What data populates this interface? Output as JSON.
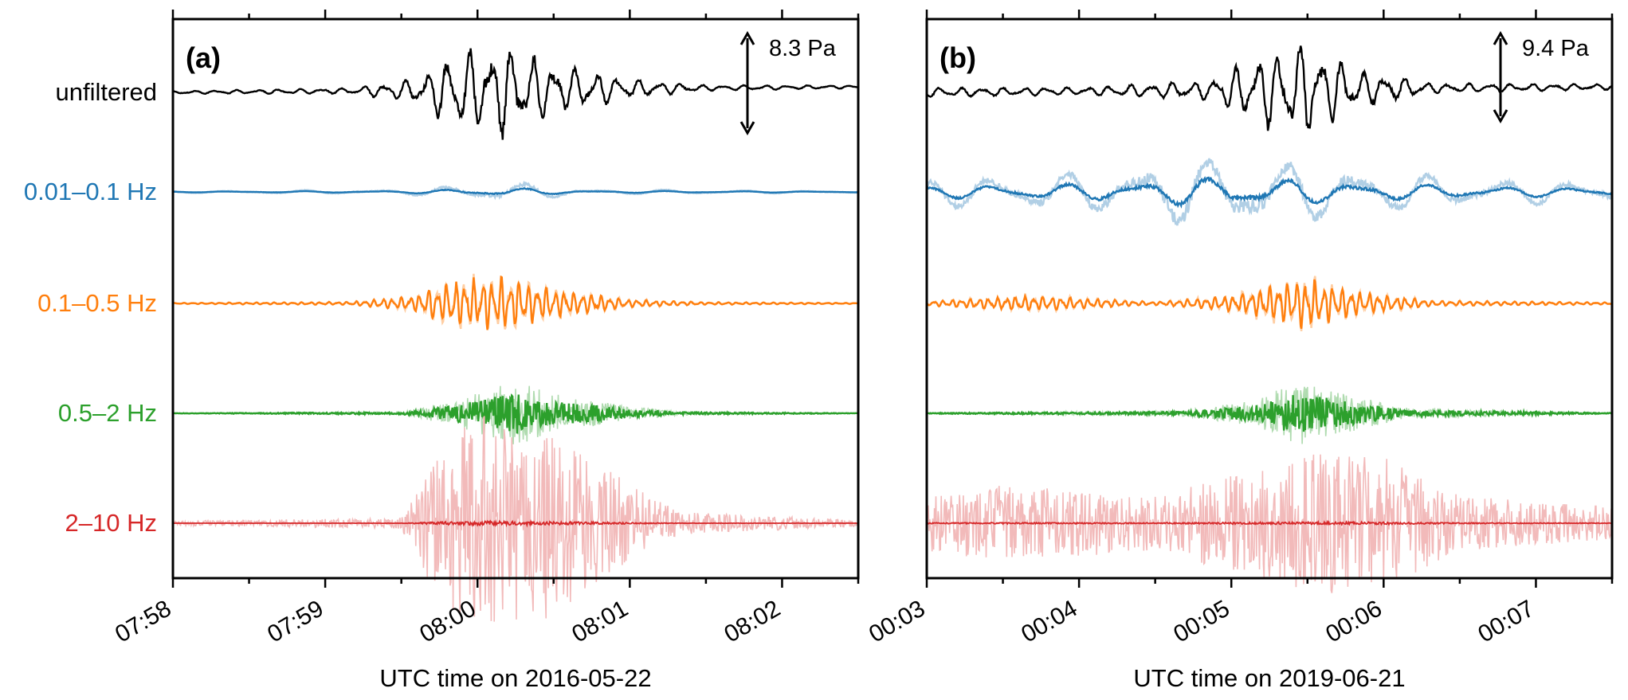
{
  "chart_data": [
    {
      "type": "line",
      "panel_label": "(a)",
      "xlabel": "UTC time on 2016-05-22",
      "ylabel": "",
      "x_tick_labels": [
        "07:58",
        "07:59",
        "08:00",
        "08:01",
        "08:02"
      ],
      "xlim": [
        "07:58",
        "08:02:30"
      ],
      "grid": false,
      "scale_bar": {
        "label": "8.3 Pa",
        "value_pa": 8.3
      },
      "legend": "none",
      "series": [
        {
          "name": "unfiltered",
          "color": "#000000",
          "envelope": [
            {
              "t": "07:58:00",
              "a": 0.03
            },
            {
              "t": "07:59:10",
              "a": 0.06
            },
            {
              "t": "07:59:35",
              "a": 0.25
            },
            {
              "t": "07:59:50",
              "a": 0.75
            },
            {
              "t": "08:00:10",
              "a": 1.0
            },
            {
              "t": "08:00:30",
              "a": 0.55
            },
            {
              "t": "08:01:00",
              "a": 0.2
            },
            {
              "t": "08:01:30",
              "a": 0.06
            },
            {
              "t": "08:02:30",
              "a": 0.03
            }
          ]
        },
        {
          "name": "0.01–0.1 Hz",
          "color": "#1f77b4",
          "envelope": [
            {
              "t": "07:58:00",
              "a": 0.02
            },
            {
              "t": "07:59:30",
              "a": 0.05
            },
            {
              "t": "07:59:55",
              "a": 0.15
            },
            {
              "t": "08:00:15",
              "a": 0.2
            },
            {
              "t": "08:00:40",
              "a": 0.06
            },
            {
              "t": "08:02:30",
              "a": 0.02
            }
          ]
        },
        {
          "name": "0.1–0.5 Hz",
          "color": "#ff7f0e",
          "envelope": [
            {
              "t": "07:58:00",
              "a": 0.02
            },
            {
              "t": "07:59:10",
              "a": 0.06
            },
            {
              "t": "07:59:35",
              "a": 0.3
            },
            {
              "t": "07:59:50",
              "a": 0.9
            },
            {
              "t": "08:00:10",
              "a": 1.0
            },
            {
              "t": "08:00:30",
              "a": 0.55
            },
            {
              "t": "08:01:00",
              "a": 0.15
            },
            {
              "t": "08:01:30",
              "a": 0.05
            },
            {
              "t": "08:02:30",
              "a": 0.02
            }
          ]
        },
        {
          "name": "0.5–2 Hz",
          "color": "#2ca02c",
          "envelope": [
            {
              "t": "07:58:00",
              "a": 0.01
            },
            {
              "t": "07:59:30",
              "a": 0.05
            },
            {
              "t": "07:59:50",
              "a": 0.35
            },
            {
              "t": "08:00:15",
              "a": 1.0
            },
            {
              "t": "08:00:30",
              "a": 0.6
            },
            {
              "t": "08:01:00",
              "a": 0.2
            },
            {
              "t": "08:01:20",
              "a": 0.06
            },
            {
              "t": "08:02:30",
              "a": 0.01
            }
          ]
        },
        {
          "name": "2–10 Hz",
          "color": "#d62728",
          "envelope": [
            {
              "t": "07:58:00",
              "a": 0.02
            },
            {
              "t": "07:59:30",
              "a": 0.05
            },
            {
              "t": "07:59:45",
              "a": 0.7
            },
            {
              "t": "08:00:00",
              "a": 1.0
            },
            {
              "t": "08:00:30",
              "a": 0.85
            },
            {
              "t": "08:01:00",
              "a": 0.35
            },
            {
              "t": "08:01:20",
              "a": 0.1
            },
            {
              "t": "08:02:30",
              "a": 0.03
            }
          ]
        }
      ]
    },
    {
      "type": "line",
      "panel_label": "(b)",
      "xlabel": "UTC time on 2019-06-21",
      "ylabel": "",
      "x_tick_labels": [
        "00:03",
        "00:04",
        "00:05",
        "00:06",
        "00:07"
      ],
      "xlim": [
        "00:03",
        "00:07:30"
      ],
      "grid": false,
      "scale_bar": {
        "label": "9.4 Pa",
        "value_pa": 9.4
      },
      "legend": "none",
      "series": [
        {
          "name": "unfiltered",
          "color": "#000000",
          "envelope": [
            {
              "t": "00:03:00",
              "a": 0.1
            },
            {
              "t": "00:04:00",
              "a": 0.08
            },
            {
              "t": "00:04:50",
              "a": 0.2
            },
            {
              "t": "00:05:15",
              "a": 0.8
            },
            {
              "t": "00:05:30",
              "a": 1.0
            },
            {
              "t": "00:05:50",
              "a": 0.4
            },
            {
              "t": "00:06:20",
              "a": 0.1
            },
            {
              "t": "00:07:30",
              "a": 0.06
            }
          ]
        },
        {
          "name": "0.01–0.1 Hz",
          "color": "#1f77b4",
          "envelope": [
            {
              "t": "00:03:00",
              "a": 0.3
            },
            {
              "t": "00:04:00",
              "a": 0.4
            },
            {
              "t": "00:05:00",
              "a": 0.8
            },
            {
              "t": "00:05:30",
              "a": 0.6
            },
            {
              "t": "00:06:30",
              "a": 0.3
            },
            {
              "t": "00:07:30",
              "a": 0.2
            }
          ]
        },
        {
          "name": "0.1–0.5 Hz",
          "color": "#ff7f0e",
          "envelope": [
            {
              "t": "00:03:00",
              "a": 0.08
            },
            {
              "t": "00:03:40",
              "a": 0.3
            },
            {
              "t": "00:04:30",
              "a": 0.06
            },
            {
              "t": "00:05:00",
              "a": 0.3
            },
            {
              "t": "00:05:30",
              "a": 1.0
            },
            {
              "t": "00:05:50",
              "a": 0.45
            },
            {
              "t": "00:06:20",
              "a": 0.1
            },
            {
              "t": "00:07:30",
              "a": 0.04
            }
          ]
        },
        {
          "name": "0.5–2 Hz",
          "color": "#2ca02c",
          "envelope": [
            {
              "t": "00:03:00",
              "a": 0.02
            },
            {
              "t": "00:04:40",
              "a": 0.08
            },
            {
              "t": "00:05:10",
              "a": 0.4
            },
            {
              "t": "00:05:25",
              "a": 1.0
            },
            {
              "t": "00:05:45",
              "a": 0.6
            },
            {
              "t": "00:06:10",
              "a": 0.15
            },
            {
              "t": "00:07:30",
              "a": 0.02
            }
          ]
        },
        {
          "name": "2–10 Hz",
          "color": "#d62728",
          "envelope": [
            {
              "t": "00:03:00",
              "a": 0.25
            },
            {
              "t": "00:03:30",
              "a": 0.35
            },
            {
              "t": "00:04:30",
              "a": 0.25
            },
            {
              "t": "00:05:30",
              "a": 0.65
            },
            {
              "t": "00:06:00",
              "a": 0.6
            },
            {
              "t": "00:06:30",
              "a": 0.25
            },
            {
              "t": "00:07:30",
              "a": 0.15
            }
          ]
        }
      ]
    }
  ]
}
